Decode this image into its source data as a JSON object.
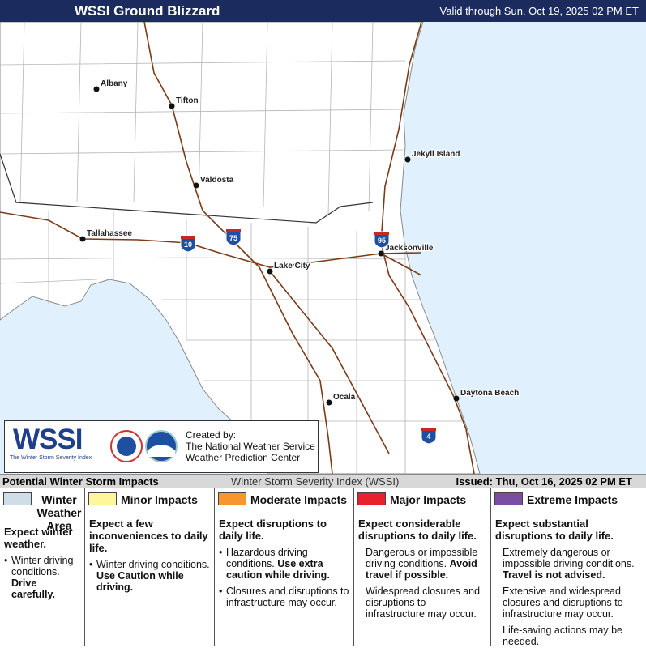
{
  "header": {
    "title": "WSSI Ground Blizzard",
    "valid": "Valid through Sun, Oct 19, 2025 02 PM ET"
  },
  "map": {
    "cities": [
      "Albany",
      "Tifton",
      "Valdosta",
      "Tallahassee",
      "Lake City",
      "Jacksonville",
      "Jekyll Island",
      "Ocala",
      "Daytona Beach"
    ],
    "interstates": [
      "10",
      "75",
      "95",
      "4"
    ]
  },
  "credits": {
    "logo": "WSSI",
    "logo_subtitle": "The Winter Storm Severity Index",
    "created_by": "Created by:",
    "org1": "The National Weather Service",
    "org2": "Weather Prediction Center"
  },
  "legend_bar": {
    "left": "Potential Winter Storm Impacts",
    "center": "Winter Storm Severity Index (WSSI)",
    "right": "Issued: Thu, Oct 16, 2025 02 PM ET"
  },
  "legend": [
    {
      "name": "Winter Weather Area",
      "color": "#cfdde8",
      "headline": "Expect winter weather.",
      "bulleted": true,
      "items": [
        {
          "text": "Winter driving conditions.",
          "emphasis": "Drive carefully."
        }
      ]
    },
    {
      "name": "Minor Impacts",
      "color": "#fff59d",
      "headline": "Expect a few inconveniences to daily life.",
      "bulleted": true,
      "items": [
        {
          "text": "Winter driving conditions.",
          "emphasis": "Use Caution while driving."
        }
      ]
    },
    {
      "name": "Moderate Impacts",
      "color": "#f7952e",
      "headline": "Expect disruptions to daily life.",
      "bulleted": true,
      "items": [
        {
          "text": "Hazardous driving conditions.",
          "emphasis": "Use extra caution while driving."
        },
        {
          "text": "Closures and disruptions to infrastructure may occur."
        }
      ]
    },
    {
      "name": "Major Impacts",
      "color": "#e8212d",
      "headline": "Expect considerable disruptions to daily life.",
      "bulleted": false,
      "items": [
        {
          "text": "Dangerous or impossible driving conditions.",
          "emphasis": "Avoid travel if possible."
        },
        {
          "text": "Widespread closures and disruptions to infrastructure may occur."
        }
      ]
    },
    {
      "name": "Extreme Impacts",
      "color": "#7b4ea3",
      "headline": "Expect substantial disruptions to daily life.",
      "bulleted": false,
      "items": [
        {
          "text": "Extremely dangerous or impossible driving conditions.",
          "emphasis": "Travel is not advised."
        },
        {
          "text": "Extensive and widespread closures and disruptions to infrastructure may occur."
        },
        {
          "text": "Life-saving actions may be needed."
        }
      ]
    }
  ]
}
